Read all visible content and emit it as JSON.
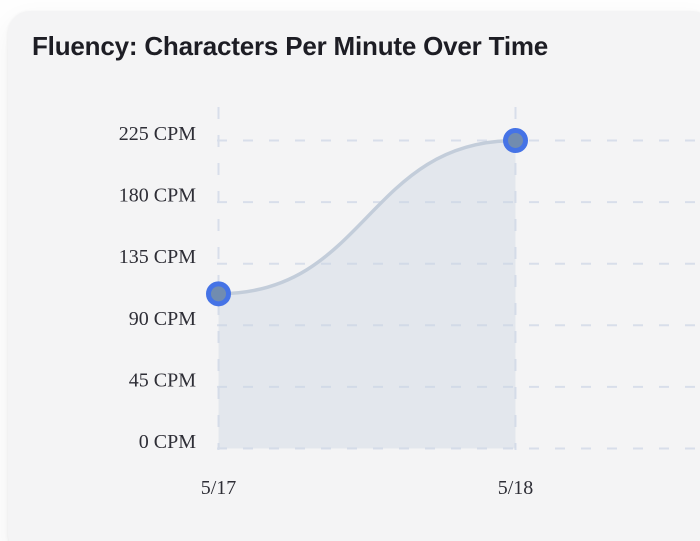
{
  "page": {
    "title": "Fluency: Characters Per Minute Over Time"
  },
  "chart_data": {
    "type": "area",
    "title": "Fluency: Characters Per Minute Over Time",
    "x": [
      "5/17",
      "5/18"
    ],
    "series": [
      {
        "name": "Characters Per Minute",
        "values": [
          113,
          225
        ]
      }
    ],
    "xlabel": "",
    "ylabel": "",
    "ylim": [
      0,
      225
    ],
    "y_tick_step": 45,
    "y_ticks": [
      225,
      180,
      135,
      90,
      45,
      0
    ],
    "y_tick_labels": [
      "225 CPM",
      "180 CPM",
      "135 CPM",
      "90 CPM",
      "45 CPM",
      "0 CPM"
    ],
    "x_tick_labels": [
      "5/17",
      "5/18"
    ],
    "grid": "dashed",
    "legend": "none",
    "curve_style": "smooth-s-curve",
    "colors": {
      "point_border": "#4573e6",
      "point_fill": "#718cb0",
      "line": "#c3cdda",
      "area_fill": "rgba(203,212,226,0.42)",
      "gridline": "#d8deea",
      "axis_text": "#2e2e36",
      "title_text": "#1d1d24",
      "card_bg": "#f4f4f5",
      "page_bg": "#fefefe"
    }
  }
}
